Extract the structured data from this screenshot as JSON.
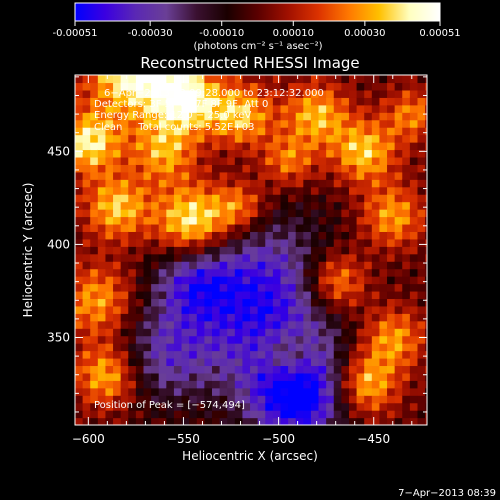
{
  "colorbar": {
    "tick_labels": [
      "-0.00051",
      "-0.00030",
      "-0.00010",
      "0.00010",
      "0.00030",
      "0.00051"
    ],
    "tick_values": [
      -0.00051,
      -0.0003,
      -0.0001,
      0.0001,
      0.0003,
      0.00051
    ],
    "range": [
      -0.00051,
      0.00051
    ],
    "units_label": "(photons cm⁻² s⁻¹ asec⁻²)",
    "colors": [
      "#0000ff",
      "#3b00e0",
      "#5a28b4",
      "#6a3f96",
      "#3a1030",
      "#1a0000",
      "#5a0000",
      "#a01000",
      "#dc3200",
      "#ff7800",
      "#ffc000",
      "#ffffc0",
      "#ffffff"
    ]
  },
  "chart_data": {
    "type": "heatmap",
    "title": "Reconstructed RHESSI Image",
    "xlabel": "Heliocentric X (arcsec)",
    "ylabel": "Heliocentric Y (arcsec)",
    "xlim": [
      -607,
      -422
    ],
    "ylim": [
      303,
      491
    ],
    "x_ticks": [
      -600,
      -550,
      -500,
      -450
    ],
    "y_ticks": [
      350,
      400,
      450
    ],
    "x_tick_labels": [
      "−600",
      "−550",
      "−500",
      "−450"
    ],
    "y_tick_labels": [
      "350",
      "400",
      "450"
    ],
    "annotations": [
      "6−Apr−2013 23:09:28.000 to 23:12:32.000",
      "Detectors: 3F 5F 6F 7F 8F 9F, Att 0",
      "Energy Range: 12.0 − 25.0 keV",
      "Clean     Total counts: 5.52E+03",
      "Position of Peak = [−574,494]"
    ],
    "peak": [
      -574,
      494
    ],
    "total_counts": 5520,
    "energy_range_keV": [
      12.0,
      25.0
    ],
    "grid": false,
    "colormap_range": [
      -0.00051,
      0.00051
    ]
  },
  "footer": {
    "timestamp": "7−Apr−2013 08:39"
  }
}
